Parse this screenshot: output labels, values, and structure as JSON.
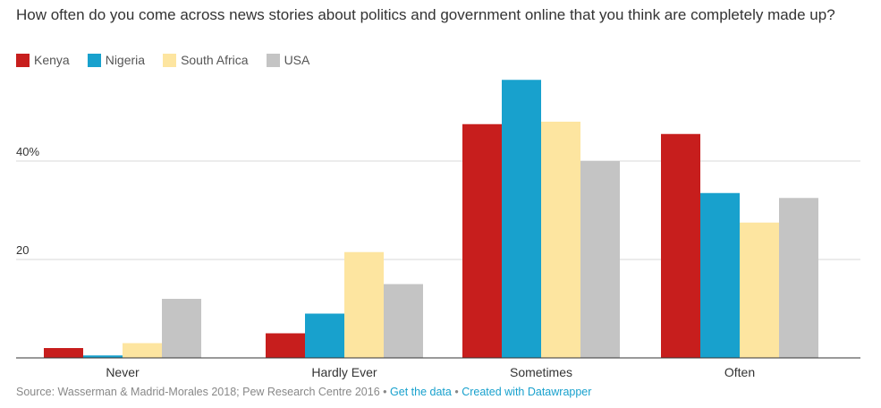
{
  "chart_data": {
    "type": "bar",
    "title": "How often do you come across news stories about politics and government online that you think are completely made up?",
    "categories": [
      "Never",
      "Hardly Ever",
      "Sometimes",
      "Often"
    ],
    "series": [
      {
        "name": "Kenya",
        "color": "#c71e1d",
        "values": [
          2,
          5,
          47.5,
          45.5
        ]
      },
      {
        "name": "Nigeria",
        "color": "#18a1cd",
        "values": [
          0.5,
          9,
          56.5,
          33.5
        ]
      },
      {
        "name": "South Africa",
        "color": "#fde5a0",
        "values": [
          3,
          21.5,
          48,
          27.5
        ]
      },
      {
        "name": "USA",
        "color": "#c4c4c4",
        "values": [
          12,
          15,
          40,
          32.5
        ]
      }
    ],
    "y_ticks": [
      {
        "value": 20,
        "label": "20"
      },
      {
        "value": 40,
        "label": "40%"
      }
    ],
    "xlabel": "",
    "ylabel": "",
    "ylim": [
      0,
      60
    ],
    "legend_position": "top-left",
    "grid": true
  },
  "footer": {
    "source": "Source: Wasserman & Madrid-Morales 2018; Pew Research Centre 2016",
    "separator": "•",
    "get_data": "Get the data",
    "created_with": "Created with Datawrapper"
  }
}
